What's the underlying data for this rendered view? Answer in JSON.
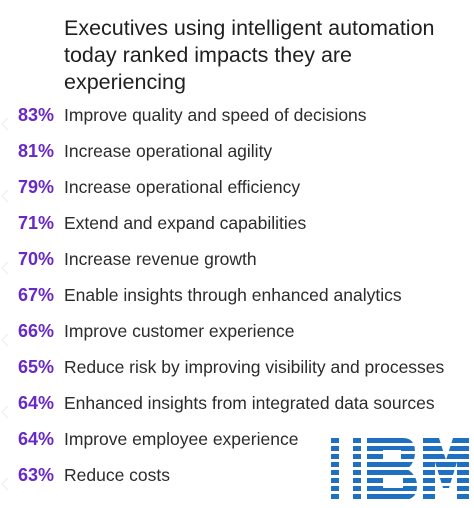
{
  "colors": {
    "accent": "#6929c4",
    "text": "#2b2b2b",
    "logo": "#1f70c1"
  },
  "logo": {
    "brand": "IBM"
  },
  "chart_data": {
    "type": "table",
    "title": "Executives using intelligent automation today ranked impacts they are experiencing",
    "unit": "%",
    "categories": [
      "Improve quality and speed of decisions",
      "Increase operational agility",
      "Increase operational efficiency",
      "Extend and expand capabilities",
      "Increase revenue growth",
      "Enable insights through enhanced analytics",
      "Improve customer experience",
      "Reduce risk by improving visibility and processes",
      "Enhanced insights from integrated data sources",
      "Improve employee experience",
      "Reduce costs"
    ],
    "values": [
      83,
      81,
      79,
      71,
      70,
      67,
      66,
      65,
      64,
      64,
      63
    ],
    "labels": [
      "83%",
      "81%",
      "79%",
      "71%",
      "70%",
      "67%",
      "66%",
      "65%",
      "64%",
      "64%",
      "63%"
    ]
  }
}
